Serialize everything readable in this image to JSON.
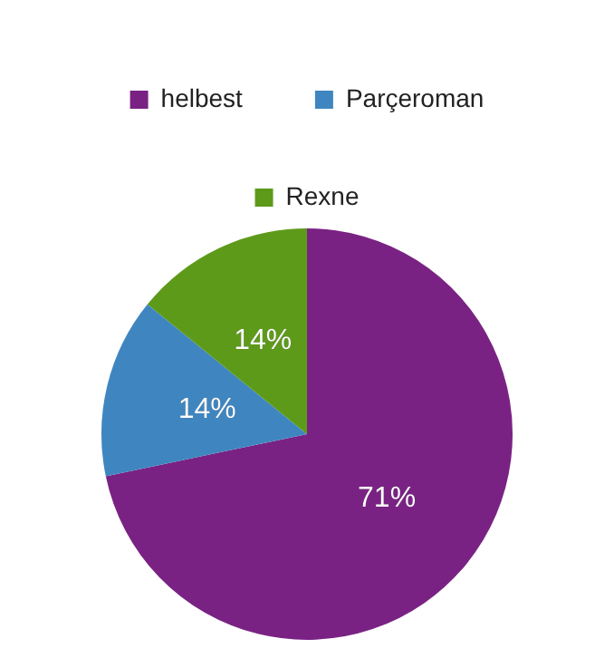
{
  "chart_data": {
    "type": "pie",
    "categories": [
      "helbest",
      "Parçeroman",
      "Rexne"
    ],
    "values": [
      71,
      14,
      14
    ],
    "colors": [
      "#7a2284",
      "#3f86c0",
      "#5e9a1a"
    ],
    "value_labels": [
      "71%",
      "14%",
      "14%"
    ],
    "legend": "top"
  }
}
